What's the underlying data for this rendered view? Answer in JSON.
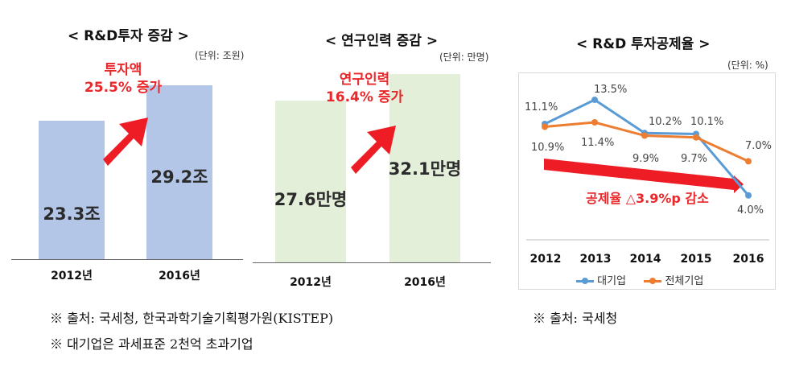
{
  "chart_data": [
    {
      "type": "bar",
      "title": "< R&D투자 증감 >",
      "unit": "(단위: 조원)",
      "categories": [
        "2012년",
        "2016년"
      ],
      "values": [
        23.3,
        29.2
      ],
      "value_labels": [
        "23.3조",
        "29.2조"
      ],
      "annotation": [
        "투자액",
        "25.5% 증가"
      ],
      "bar_color": "#b4c6e7"
    },
    {
      "type": "bar",
      "title": "< 연구인력 증감 >",
      "unit": "(단위: 만명)",
      "categories": [
        "2012년",
        "2016년"
      ],
      "values": [
        27.6,
        32.1
      ],
      "value_labels": [
        "27.6만명",
        "32.1만명"
      ],
      "annotation": [
        "연구인력",
        "16.4% 증가"
      ],
      "bar_color": "#e3efd9"
    },
    {
      "type": "line",
      "title": "< R&D 투자공제율 >",
      "unit": "(단위: %)",
      "x": [
        "2012",
        "2013",
        "2014",
        "2015",
        "2016"
      ],
      "series": [
        {
          "name": "대기업",
          "values": [
            11.1,
            13.5,
            10.2,
            10.1,
            4.0
          ],
          "labels": [
            "11.1%",
            "13.5%",
            "10.2%",
            "10.1%",
            "4.0%"
          ],
          "color": "#5b9bd5"
        },
        {
          "name": "전체기업",
          "values": [
            10.9,
            11.4,
            9.9,
            9.7,
            7.0
          ],
          "labels": [
            "10.9%",
            "11.4%",
            "9.9%",
            "9.7%",
            "7.0%"
          ],
          "color": "#ed7d31"
        }
      ],
      "annotation": "공제율 △3.9%p 감소",
      "ylim": [
        0,
        16
      ]
    }
  ],
  "notes": {
    "left_source": "※ 출처: 국세청, 한국과학기술기획평가원(KISTEP)",
    "left_note": "※ 대기업은 과세표준 2천억 초과기업",
    "right_source": "※ 출처: 국세청"
  },
  "colors": {
    "arrow": "#ee1c25",
    "annotation_text": "#e8282b",
    "grid_frame": "#bfbfbf"
  }
}
